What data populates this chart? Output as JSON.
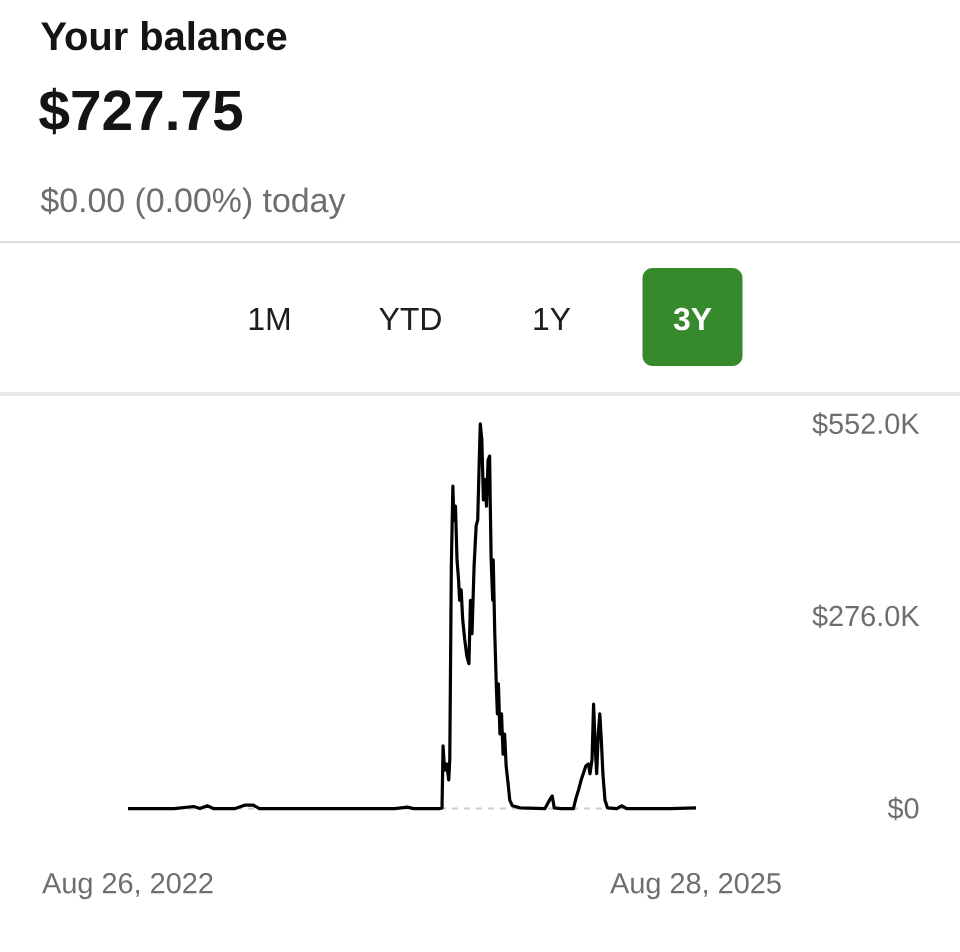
{
  "chart_data": {
    "type": "line",
    "title": "Your balance",
    "subtitle": "$727.75",
    "annotations": [
      "$0.00 (0.00%) today",
      "1M",
      "YTD",
      "1Y",
      "3Y"
    ],
    "x": [
      "2022-08-26",
      "2022-10-09",
      "2022-11-23",
      "2022-12-31",
      "2023-01-12",
      "2023-01-26",
      "2023-02-07",
      "2023-03-21",
      "2023-04-10",
      "2023-04-25",
      "2023-05-07",
      "2023-05-19",
      "2023-07-17",
      "2023-09-14",
      "2023-11-12",
      "2024-01-24",
      "2024-02-17",
      "2024-02-29",
      "2024-03-24",
      "2024-04-19",
      "2024-04-24",
      "2024-04-26",
      "2024-04-29",
      "2024-05-03",
      "2024-05-07",
      "2024-05-09",
      "2024-05-12",
      "2024-05-15",
      "2024-05-17",
      "2024-05-20",
      "2024-05-23",
      "2024-05-26",
      "2024-05-28",
      "2024-05-31",
      "2024-06-03",
      "2024-06-07",
      "2024-06-11",
      "2024-06-15",
      "2024-06-18",
      "2024-06-21",
      "2024-06-25",
      "2024-06-29",
      "2024-07-02",
      "2024-07-05",
      "2024-07-07",
      "2024-07-10",
      "2024-07-13",
      "2024-07-16",
      "2024-07-19",
      "2024-07-22",
      "2024-07-25",
      "2024-07-26",
      "2024-07-28",
      "2024-07-31",
      "2024-08-01",
      "2024-08-04",
      "2024-08-07",
      "2024-08-09",
      "2024-08-11",
      "2024-08-14",
      "2024-08-17",
      "2024-08-20",
      "2024-08-23",
      "2024-08-26",
      "2024-08-29",
      "2024-09-02",
      "2024-09-07",
      "2024-09-22",
      "2024-11-09",
      "2024-11-20",
      "2024-11-23",
      "2024-11-27",
      "2024-12-09",
      "2025-01-03",
      "2025-01-08",
      "2025-01-13",
      "2025-01-18",
      "2025-01-22",
      "2025-01-27",
      "2025-02-01",
      "2025-02-04",
      "2025-02-08",
      "2025-02-11",
      "2025-02-14",
      "2025-02-17",
      "2025-02-20",
      "2025-02-23",
      "2025-02-26",
      "2025-03-01",
      "2025-03-05",
      "2025-03-10",
      "2025-03-28",
      "2025-04-06",
      "2025-04-16",
      "2025-05-26",
      "2025-07-09",
      "2025-08-28"
    ],
    "series": [
      {
        "color": "#000000",
        "values": [
          0,
          0,
          0,
          3,
          0,
          4,
          0,
          0,
          5,
          5,
          0,
          0,
          0,
          0,
          0,
          0,
          2,
          0,
          0,
          0,
          1,
          90,
          55,
          64,
          41,
          70,
          348,
          463,
          414,
          434,
          357,
          328,
          299,
          314,
          271,
          242,
          219,
          208,
          299,
          251,
          348,
          406,
          414,
          500,
          552,
          529,
          443,
          472,
          434,
          500,
          506,
          451,
          357,
          299,
          357,
          251,
          176,
          136,
          179,
          107,
          136,
          78,
          107,
          61,
          41,
          12,
          4,
          1,
          0,
          15,
          18,
          1,
          0,
          0,
          15,
          27,
          41,
          50,
          61,
          64,
          50,
          70,
          150,
          90,
          50,
          107,
          136,
          98,
          50,
          12,
          1,
          0,
          4,
          0,
          0,
          0,
          1
        ]
      }
    ],
    "xlim": [
      "2022-08-26",
      "2025-08-28"
    ],
    "xticks": [
      {
        "value": "2022-08-26",
        "label": "Aug 26, 2022"
      },
      {
        "value": "2025-08-28",
        "label": "Aug 28, 2025"
      }
    ],
    "ylim": [
      0,
      552
    ],
    "yticks": [
      {
        "value": 0,
        "label": "$0"
      },
      {
        "value": 276,
        "label": "$276.0K"
      },
      {
        "value": 552,
        "label": "$552.0K"
      }
    ],
    "ref_lines": [
      {
        "axis": "y",
        "value": 0,
        "color": "#cccccc",
        "line_style": "dashed"
      }
    ],
    "line_style": "solid"
  }
}
